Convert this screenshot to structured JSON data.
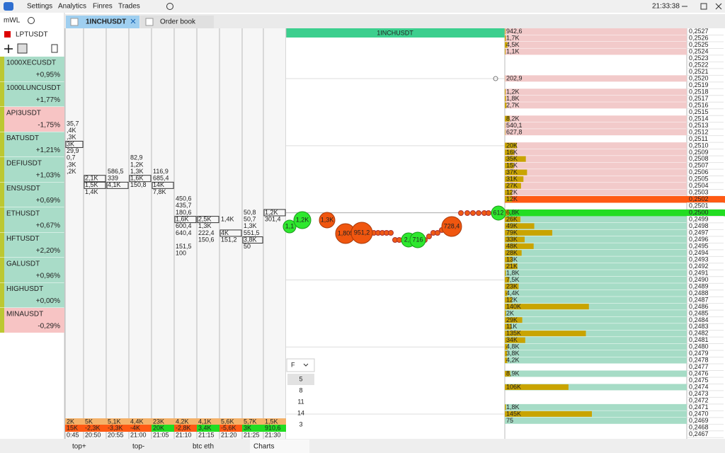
{
  "menu": {
    "items": [
      "Settings",
      "Analytics",
      "Finres",
      "Trades"
    ],
    "clock": "21:33:38"
  },
  "watchlist": {
    "title": "mWL",
    "selected": "LPTUSDT",
    "items": [
      {
        "symbol": "1000XECUSDT",
        "change": "+0,95%"
      },
      {
        "symbol": "1000LUNCUSDT",
        "change": "+1,77%"
      },
      {
        "symbol": "API3USDT",
        "change": "-1,75%"
      },
      {
        "symbol": "BATUSDT",
        "change": "+1,21%"
      },
      {
        "symbol": "DEFIUSDT",
        "change": "+1,03%"
      },
      {
        "symbol": "ENSUSDT",
        "change": "+0,69%"
      },
      {
        "symbol": "ETHUSDT",
        "change": "+0,67%"
      },
      {
        "symbol": "HFTUSDT",
        "change": "+2,20%"
      },
      {
        "symbol": "GALUSDT",
        "change": "+0,96%"
      },
      {
        "symbol": "HIGHUSDT",
        "change": "+0,00%"
      },
      {
        "symbol": "MINAUSDT",
        "change": "-0,29%"
      }
    ]
  },
  "tabs": [
    "1INCHUSDT",
    "Order book"
  ],
  "clusters": {
    "columns": [
      [
        "35,7",
        ",4K",
        ",3K",
        "3K",
        "29,9",
        "0,7",
        ",3K",
        ",2K"
      ],
      [
        null,
        null,
        null,
        null,
        null,
        null,
        null,
        null,
        "2,1K",
        "1,5K",
        "1,4K"
      ],
      [
        null,
        null,
        null,
        null,
        null,
        null,
        null,
        "586,5",
        "339",
        "4,1K"
      ],
      [
        null,
        null,
        null,
        null,
        null,
        "82,9",
        "1,2K",
        "1,3K",
        "1,6K",
        "150,8"
      ],
      [
        null,
        null,
        null,
        null,
        null,
        null,
        null,
        "116,9",
        "685,4",
        "14K",
        "7,8K"
      ],
      [
        null,
        null,
        null,
        null,
        null,
        null,
        null,
        null,
        null,
        null,
        null,
        "450,6",
        "435,7",
        "180,6",
        "1,6K",
        "600,4",
        "640,4",
        null,
        "151,5",
        "100"
      ],
      [
        null,
        null,
        null,
        null,
        null,
        null,
        null,
        null,
        null,
        null,
        null,
        null,
        null,
        null,
        "2,5K",
        "1,3K",
        "222,4",
        "150,6"
      ],
      [
        null,
        null,
        null,
        null,
        null,
        null,
        null,
        null,
        null,
        null,
        null,
        null,
        null,
        null,
        "1,4K",
        null,
        "4K",
        "151,2"
      ],
      [
        null,
        null,
        null,
        null,
        null,
        null,
        null,
        null,
        null,
        null,
        null,
        null,
        null,
        "50,8",
        "50,7",
        "1,3K",
        "551,5",
        "3,8K",
        "50"
      ],
      [
        null,
        null,
        null,
        null,
        null,
        null,
        null,
        null,
        null,
        null,
        null,
        null,
        null,
        "1,2K",
        "301,4"
      ]
    ],
    "volumes": [
      "2K",
      "5K",
      "5,1K",
      "4,4K",
      "23K",
      "4,2K",
      "4,1K",
      "5,6K",
      "5,7K",
      "1,5K"
    ],
    "deltas": [
      "15K",
      "-2,3K",
      "-3,3K",
      "-4K",
      "20K",
      "-2,8K",
      "3,4K",
      "-5,6K",
      "3K",
      "910,6"
    ],
    "delta_colors": [
      "#ff5a14",
      "#ff5a14",
      "#ff5a14",
      "#ff5a14",
      "#22dd22",
      "#ff5a14",
      "#22dd22",
      "#ff5a14",
      "#22dd22",
      "#22dd22"
    ],
    "times": [
      "0:45",
      "20:50",
      "20:55",
      "21:00",
      "21:05",
      "21:10",
      "21:15",
      "21:20",
      "21:25",
      "21:30"
    ]
  },
  "chart": {
    "title": "1INCHUSDT",
    "bubbles": [
      "1,1",
      "1,2K",
      "1,3K",
      "1,805",
      "951,2",
      "2,4",
      "716",
      "728,4",
      "612"
    ],
    "interval": {
      "selected": "F",
      "options": [
        "5",
        "8",
        "11",
        "14",
        "3"
      ]
    }
  },
  "order_book": {
    "prices": [
      "0,2527",
      "0,2526",
      "0,2525",
      "0,2524",
      "0,2523",
      "0,2522",
      "0,2521",
      "0,2520",
      "0,2519",
      "0,2518",
      "0,2517",
      "0,2516",
      "0,2515",
      "0,2514",
      "0,2513",
      "0,2512",
      "0,2511",
      "0,2510",
      "0,2509",
      "0,2508",
      "0,2507",
      "0,2506",
      "0,2505",
      "0,2504",
      "0,2503",
      "0,2502",
      "0,2501",
      "0,2500",
      "0,2499",
      "0,2498",
      "0,2497",
      "0,2496",
      "0,2495",
      "0,2494",
      "0,2493",
      "0,2492",
      "0,2491",
      "0,2490",
      "0,2489",
      "0,2488",
      "0,2487",
      "0,2486",
      "0,2485",
      "0,2484",
      "0,2483",
      "0,2482",
      "0,2481",
      "0,2480",
      "0,2479",
      "0,2478",
      "0,2477",
      "0,2476",
      "0,2475",
      "0,2474",
      "0,2473",
      "0,2472",
      "0,2471",
      "0,2470",
      "0,2469",
      "0,2468",
      "0,2467"
    ],
    "volumes": [
      942.6,
      1700,
      4500,
      1100,
      null,
      null,
      null,
      202.9,
      null,
      1200,
      1800,
      2700,
      null,
      8200,
      540.1,
      627.8,
      null,
      20000,
      16000,
      35000,
      15000,
      37000,
      31000,
      27000,
      12000,
      12000,
      null,
      6800,
      26000,
      49000,
      79000,
      33000,
      48000,
      28000,
      13000,
      21000,
      1800,
      7500,
      23000,
      4400,
      12000,
      140000,
      2000,
      29000,
      11000,
      135000,
      34000,
      4800,
      3800,
      4200,
      null,
      8900,
      null,
      106000,
      null,
      null,
      1800,
      145000,
      75,
      null,
      null
    ],
    "volume_labels": [
      "942,6",
      "1,7K",
      "4,5K",
      "1,1K",
      null,
      null,
      null,
      "202,9",
      null,
      "1,2K",
      "1,8K",
      "2,7K",
      null,
      "8,2K",
      "540,1",
      "627,8",
      null,
      "20K",
      "16K",
      "35K",
      "15K",
      "37K",
      "31K",
      "27K",
      "12K",
      "12K",
      null,
      "6,8K",
      "26K",
      "49K",
      "79K",
      "33K",
      "48K",
      "28K",
      "13K",
      "21K",
      "1,8K",
      "7,5K",
      "23K",
      "4,4K",
      "12K",
      "140K",
      "2K",
      "29K",
      "11K",
      "135K",
      "34K",
      "4,8K",
      "3,8K",
      "4,2K",
      null,
      "8,9K",
      null,
      "106K",
      null,
      null,
      "1,8K",
      "145K",
      "75",
      null,
      null
    ],
    "bar_color": "#c9a400",
    "ask_color": "#f2caca",
    "bid_color": "#a6dcc6"
  },
  "bottom_tabs": [
    "top+",
    "top-",
    "btc eth",
    "Charts"
  ]
}
